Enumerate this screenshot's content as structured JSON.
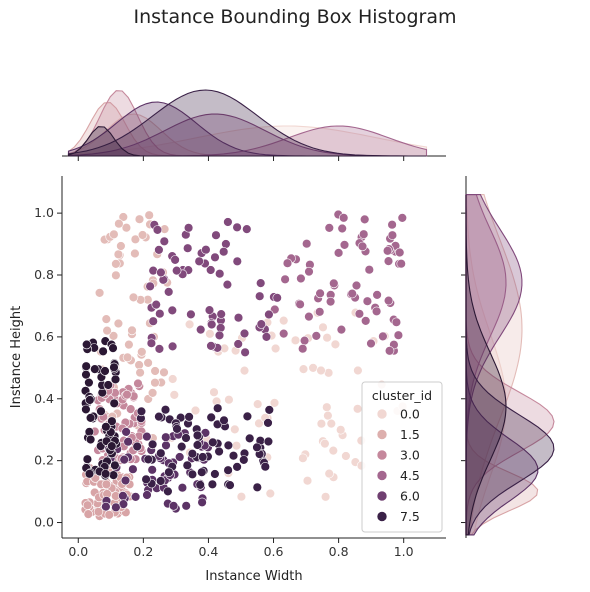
{
  "chart_data": {
    "type": "scatter",
    "title": "Instance Bounding Box Histogram",
    "xlabel": "Instance Width",
    "ylabel": "Instance Height",
    "xlim": [
      -0.05,
      1.13
    ],
    "ylim": [
      -0.05,
      1.12
    ],
    "xticks": [
      0.0,
      0.2,
      0.4,
      0.6,
      0.8,
      1.0
    ],
    "yticks": [
      0.0,
      0.2,
      0.4,
      0.6,
      0.8,
      1.0
    ],
    "grid": false,
    "marginals": "kde",
    "legend": {
      "title": "cluster_id",
      "placement": "lower-right",
      "entries": [
        {
          "label": "0.0",
          "color": "#f1d7d2"
        },
        {
          "label": "1.5",
          "color": "#ddafad"
        },
        {
          "label": "3.0",
          "color": "#c5889c"
        },
        {
          "label": "4.5",
          "color": "#a4678f"
        },
        {
          "label": "6.0",
          "color": "#6f3f70"
        },
        {
          "label": "7.5",
          "color": "#3a2147"
        }
      ]
    },
    "series": [
      {
        "cluster": 0,
        "color": "#f1d7d2",
        "region": {
          "x": [
            0.28,
            1.0
          ],
          "y": [
            0.08,
            0.68
          ]
        }
      },
      {
        "cluster": 1,
        "color": "#e3bcb8",
        "region": {
          "x": [
            0.06,
            0.28
          ],
          "y": [
            0.25,
            1.0
          ]
        }
      },
      {
        "cluster": 2,
        "color": "#d8a4a6",
        "region": {
          "x": [
            0.02,
            0.16
          ],
          "y": [
            0.02,
            0.18
          ]
        }
      },
      {
        "cluster": 3,
        "color": "#c5889c",
        "region": {
          "x": [
            0.05,
            0.2
          ],
          "y": [
            0.2,
            0.45
          ]
        }
      },
      {
        "cluster": 4,
        "color": "#a4678f",
        "region": {
          "x": [
            0.6,
            1.0
          ],
          "y": [
            0.55,
            1.0
          ]
        }
      },
      {
        "cluster": 5,
        "color": "#814a7c",
        "region": {
          "x": [
            0.22,
            0.62
          ],
          "y": [
            0.55,
            1.0
          ]
        }
      },
      {
        "cluster": 6,
        "color": "#5c3366",
        "region": {
          "x": [
            0.08,
            0.4
          ],
          "y": [
            0.04,
            0.3
          ]
        }
      },
      {
        "cluster": 7,
        "color": "#3a2147",
        "region": {
          "x": [
            0.18,
            0.6
          ],
          "y": [
            0.1,
            0.38
          ]
        }
      },
      {
        "cluster": 8,
        "color": "#2b1834",
        "region": {
          "x": [
            0.02,
            0.12
          ],
          "y": [
            0.15,
            0.6
          ]
        }
      }
    ]
  }
}
